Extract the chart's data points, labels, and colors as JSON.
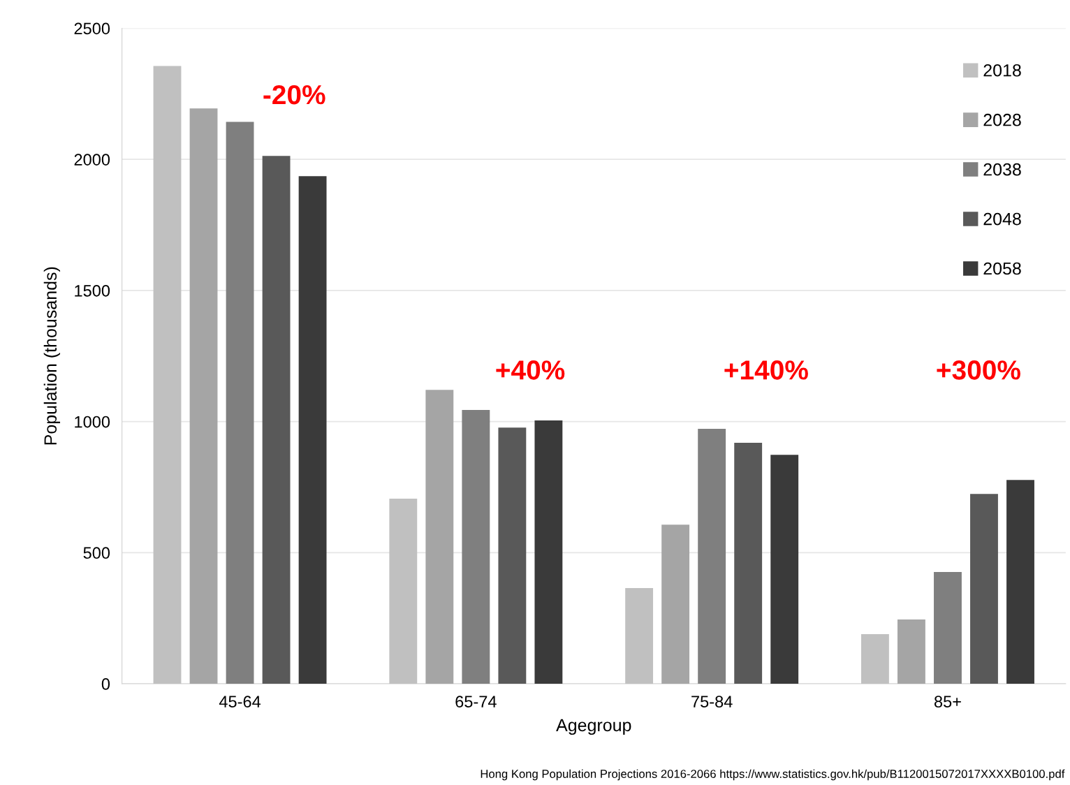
{
  "chart_data": {
    "type": "bar",
    "xlabel": "Agegroup",
    "ylabel": "Population (thousands)",
    "categories": [
      "45-64",
      "65-74",
      "75-84",
      "85+"
    ],
    "series": [
      {
        "name": "2018",
        "color": "#c0c0c0",
        "values": [
          2356,
          706,
          365,
          189
        ]
      },
      {
        "name": "2028",
        "color": "#a5a5a5",
        "values": [
          2194,
          1121,
          607,
          245
        ]
      },
      {
        "name": "2038",
        "color": "#7f7f7f",
        "values": [
          2143,
          1044,
          972,
          426
        ]
      },
      {
        "name": "2048",
        "color": "#595959",
        "values": [
          2013,
          977,
          919,
          724
        ]
      },
      {
        "name": "2058",
        "color": "#3a3a3a",
        "values": [
          1936,
          1004,
          873,
          777
        ]
      }
    ],
    "ylim": [
      0,
      2500
    ],
    "yticks": [
      0,
      500,
      1000,
      1500,
      2000,
      2500
    ],
    "grid": "y",
    "legend": "top right",
    "annotations": [
      "-20%",
      "+40%",
      "+140%",
      "+300%",
      "Hong Kong Population Projections 2016-2066 https://www.statistics.gov.hk/pub/B1120015072017XXXXB0100.pdf"
    ]
  }
}
